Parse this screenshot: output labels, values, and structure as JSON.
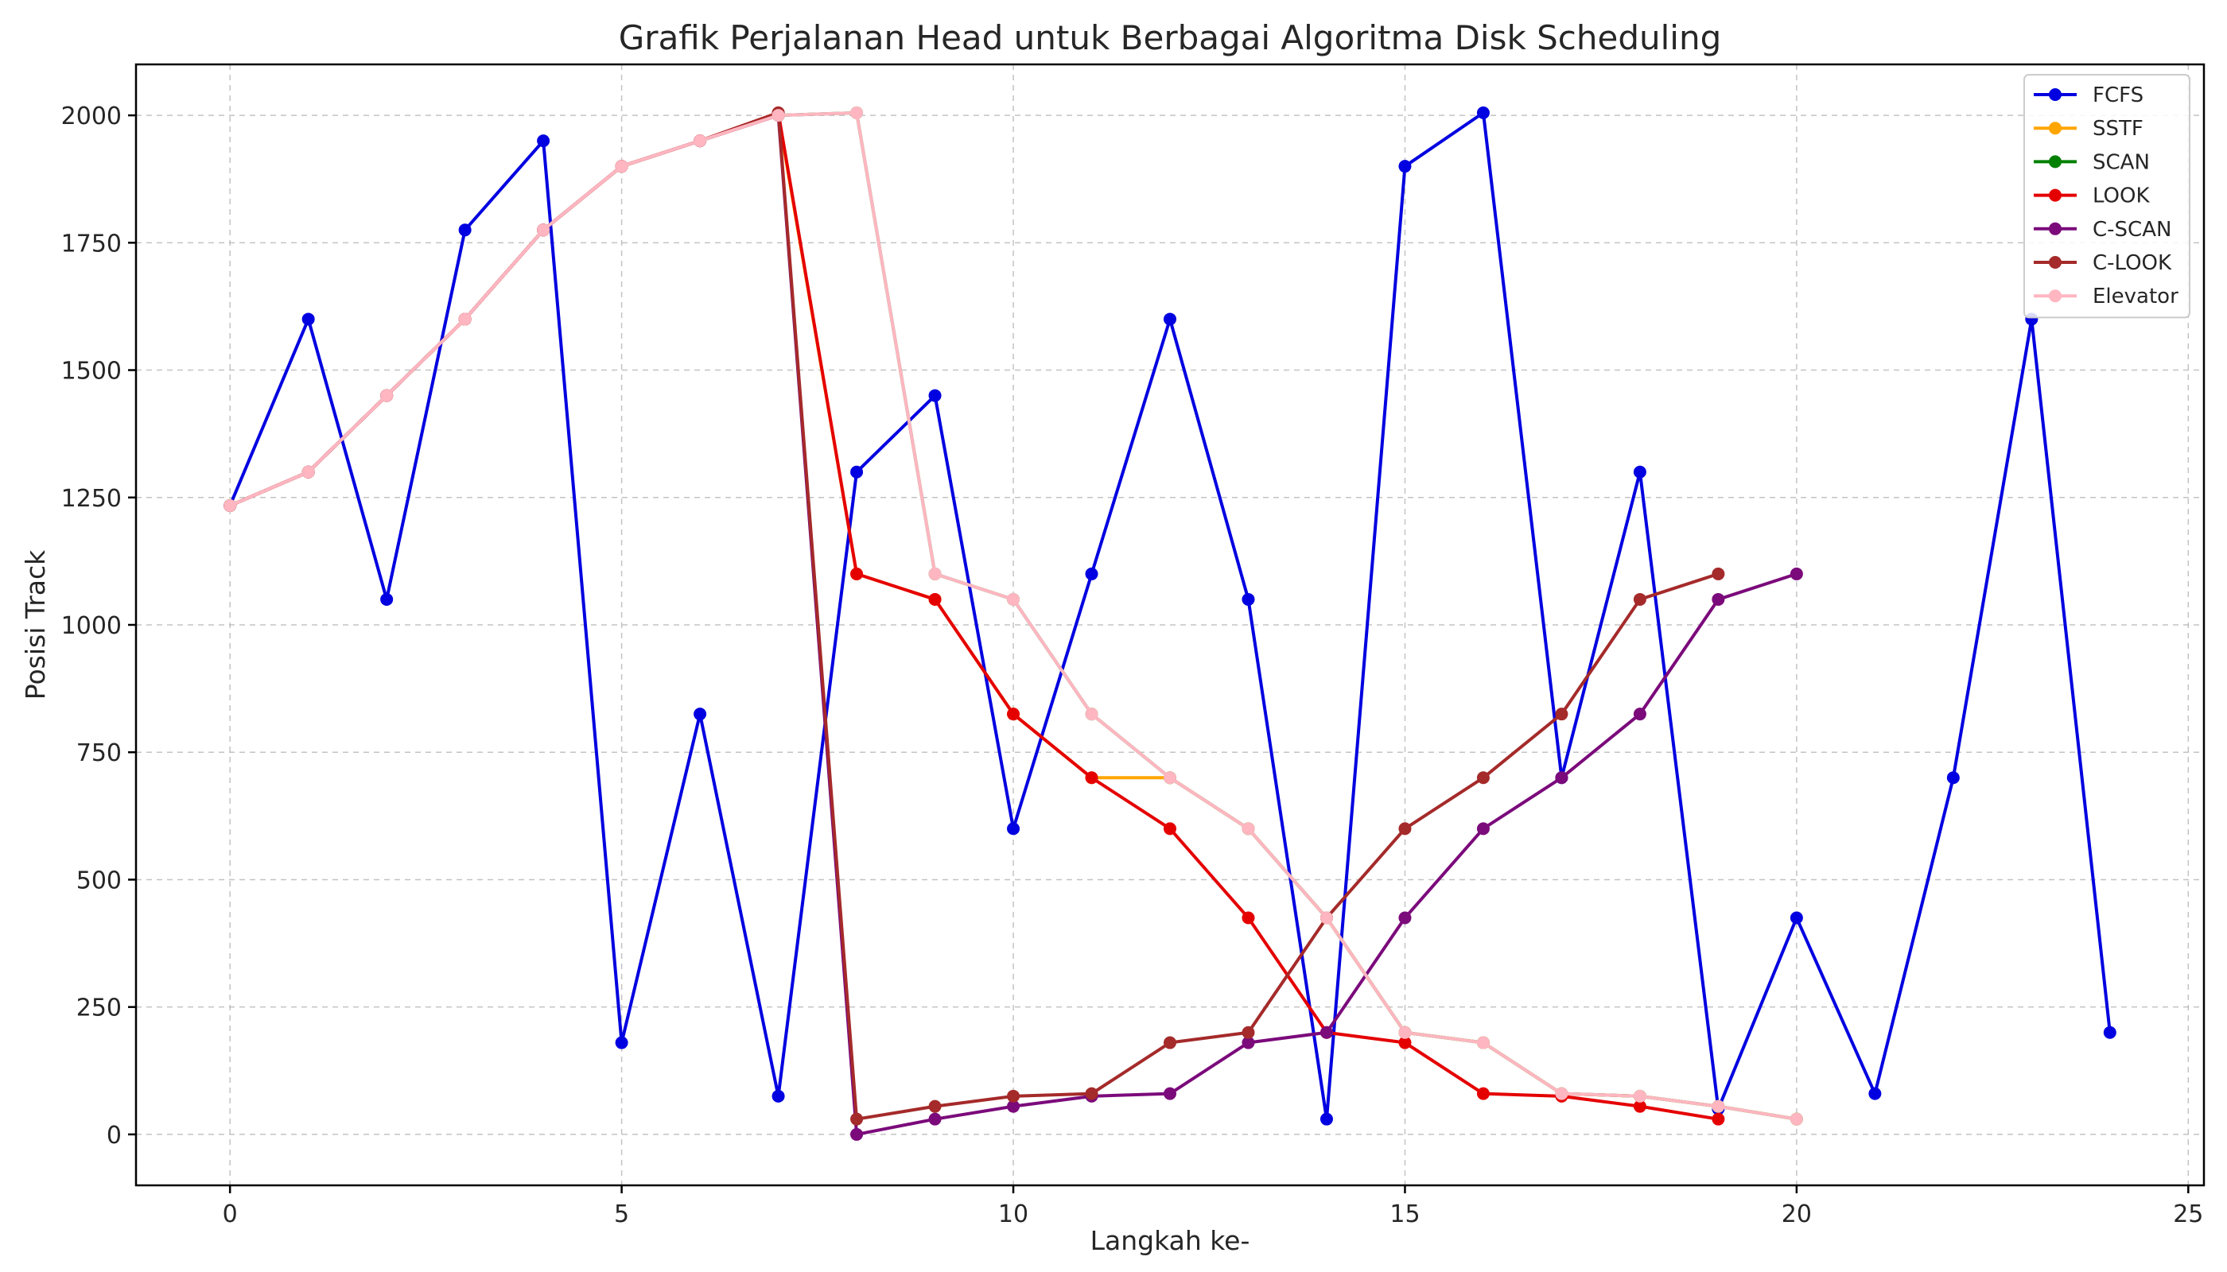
{
  "chart_data": {
    "type": "line",
    "title": "Grafik Perjalanan Head untuk Berbagai Algoritma Disk Scheduling",
    "xlabel": "Langkah ke-",
    "ylabel": "Posisi Track",
    "xlim": [
      -1.2,
      25.2
    ],
    "ylim": [
      -100,
      2100
    ],
    "xticks": [
      0,
      5,
      10,
      15,
      20,
      25
    ],
    "yticks": [
      0,
      250,
      500,
      750,
      1000,
      1250,
      1500,
      1750,
      2000
    ],
    "grid": true,
    "legend_position": "top-right",
    "series": [
      {
        "name": "FCFS",
        "color": "#0000e0",
        "values": [
          1234,
          1600,
          1050,
          1775,
          1950,
          180,
          825,
          75,
          1300,
          1450,
          600,
          1100,
          1600,
          1050,
          30,
          1900,
          2005,
          700,
          1300,
          50,
          425,
          80,
          700,
          1600,
          200
        ]
      },
      {
        "name": "SSTF",
        "color": "#ffa500",
        "values": [
          1234,
          1300,
          1450,
          1600,
          1775,
          1900,
          1950,
          2000,
          1100,
          1050,
          825,
          700,
          700,
          600,
          425,
          200,
          180,
          80,
          75,
          55,
          30
        ]
      },
      {
        "name": "SCAN",
        "color": "#008000",
        "values": [
          1234,
          1300,
          1450,
          1600,
          1775,
          1900,
          1950,
          2000,
          2005,
          1100,
          1050,
          825,
          700,
          600,
          425,
          200,
          180,
          80,
          75,
          55,
          30
        ]
      },
      {
        "name": "LOOK",
        "color": "#e50000",
        "values": [
          1234,
          1300,
          1450,
          1600,
          1775,
          1900,
          1950,
          2005,
          1100,
          1050,
          825,
          700,
          600,
          425,
          200,
          180,
          80,
          75,
          55,
          30
        ]
      },
      {
        "name": "C-SCAN",
        "color": "#7b0a7b",
        "values": [
          1234,
          1300,
          1450,
          1600,
          1775,
          1900,
          1950,
          2000,
          0,
          30,
          55,
          75,
          80,
          180,
          200,
          425,
          600,
          700,
          825,
          1050,
          1100
        ]
      },
      {
        "name": "C-LOOK",
        "color": "#a52a2a",
        "values": [
          1234,
          1300,
          1450,
          1600,
          1775,
          1900,
          1950,
          2005,
          30,
          55,
          75,
          80,
          180,
          200,
          425,
          600,
          700,
          825,
          1050,
          1100
        ]
      },
      {
        "name": "Elevator",
        "color": "#ffb6c1",
        "values": [
          1234,
          1300,
          1450,
          1600,
          1775,
          1900,
          1950,
          2000,
          2005,
          1100,
          1050,
          825,
          700,
          600,
          425,
          200,
          180,
          80,
          75,
          55,
          30
        ]
      }
    ]
  }
}
